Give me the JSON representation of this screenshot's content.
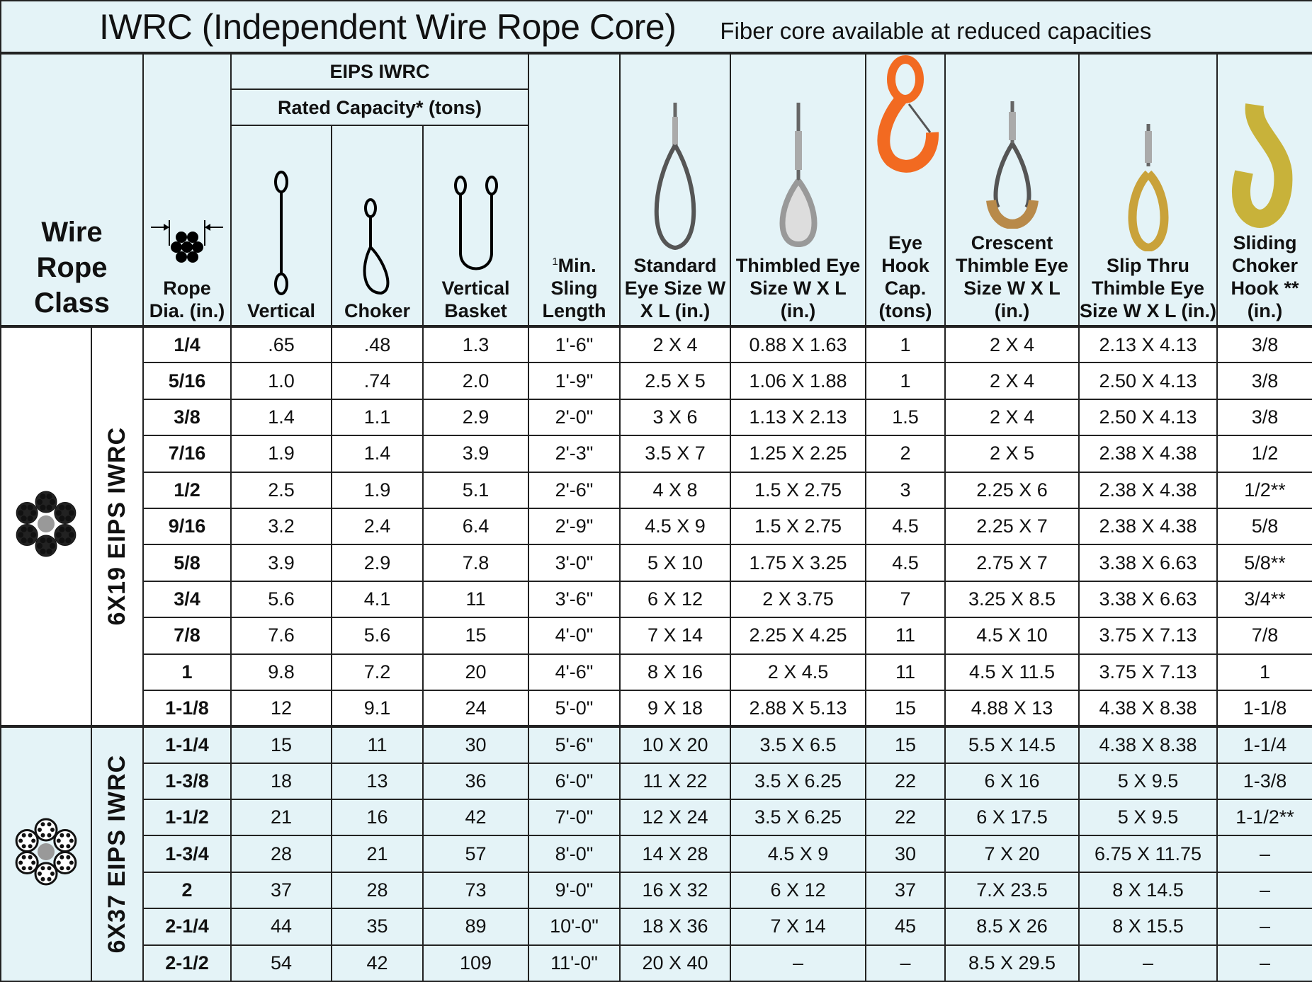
{
  "title": "IWRC (Independent Wire Rope Core)",
  "subtitle": "Fiber core available at reduced capacities",
  "headers": {
    "class": "Wire Rope Class",
    "dia": "Rope Dia. (in.)",
    "group": "EIPS IWRC",
    "rated": "Rated Capacity* (tons)",
    "vertical": "Vertical",
    "choker": "Choker",
    "basket": "Vertical Basket",
    "min_sup": "1",
    "min": "Min. Sling Length",
    "standard": "Standard Eye Size W X L (in.)",
    "thimbled": "Thimbled Eye Size W X L (in.)",
    "hook": "Eye Hook Cap. (tons)",
    "crescent": "Crescent Thimble Eye Size W X L (in.)",
    "slip": "Slip Thru Thimble Eye Size W X L (in.)",
    "sliding": "Sliding Choker Hook ** (in.)"
  },
  "sections": [
    {
      "label": "6X19 EIPS IWRC",
      "icon": "wire-rope-6x19-cross-section-icon",
      "rows": [
        [
          "1/4",
          ".65",
          ".48",
          "1.3",
          "1'-6\"",
          "2 X 4",
          "0.88 X 1.63",
          "1",
          "2 X 4",
          "2.13 X 4.13",
          "3/8"
        ],
        [
          "5/16",
          "1.0",
          ".74",
          "2.0",
          "1'-9\"",
          "2.5 X 5",
          "1.06 X 1.88",
          "1",
          "2 X 4",
          "2.50 X 4.13",
          "3/8"
        ],
        [
          "3/8",
          "1.4",
          "1.1",
          "2.9",
          "2'-0\"",
          "3 X 6",
          "1.13 X 2.13",
          "1.5",
          "2 X 4",
          "2.50 X 4.13",
          "3/8"
        ],
        [
          "7/16",
          "1.9",
          "1.4",
          "3.9",
          "2'-3\"",
          "3.5 X 7",
          "1.25 X 2.25",
          "2",
          "2 X 5",
          "2.38 X 4.38",
          "1/2"
        ],
        [
          "1/2",
          "2.5",
          "1.9",
          "5.1",
          "2'-6\"",
          "4 X 8",
          "1.5 X 2.75",
          "3",
          "2.25 X 6",
          "2.38 X 4.38",
          "1/2**"
        ],
        [
          "9/16",
          "3.2",
          "2.4",
          "6.4",
          "2'-9\"",
          "4.5 X 9",
          "1.5 X 2.75",
          "4.5",
          "2.25 X 7",
          "2.38 X 4.38",
          "5/8"
        ],
        [
          "5/8",
          "3.9",
          "2.9",
          "7.8",
          "3'-0\"",
          "5 X 10",
          "1.75 X 3.25",
          "4.5",
          "2.75 X 7",
          "3.38 X 6.63",
          "5/8**"
        ],
        [
          "3/4",
          "5.6",
          "4.1",
          "11",
          "3'-6\"",
          "6 X 12",
          "2 X 3.75",
          "7",
          "3.25 X 8.5",
          "3.38 X 6.63",
          "3/4**"
        ],
        [
          "7/8",
          "7.6",
          "5.6",
          "15",
          "4'-0\"",
          "7 X 14",
          "2.25 X 4.25",
          "11",
          "4.5 X 10",
          "3.75 X 7.13",
          "7/8"
        ],
        [
          "1",
          "9.8",
          "7.2",
          "20",
          "4'-6\"",
          "8 X 16",
          "2 X 4.5",
          "11",
          "4.5 X 11.5",
          "3.75 X 7.13",
          "1"
        ],
        [
          "1-1/8",
          "12",
          "9.1",
          "24",
          "5'-0\"",
          "9 X 18",
          "2.88 X 5.13",
          "15",
          "4.88 X 13",
          "4.38 X 8.38",
          "1-1/8"
        ]
      ]
    },
    {
      "label": "6X37 EIPS IWRC",
      "icon": "wire-rope-6x37-cross-section-icon",
      "rows": [
        [
          "1-1/4",
          "15",
          "11",
          "30",
          "5'-6\"",
          "10 X 20",
          "3.5 X 6.5",
          "15",
          "5.5 X 14.5",
          "4.38 X 8.38",
          "1-1/4"
        ],
        [
          "1-3/8",
          "18",
          "13",
          "36",
          "6'-0\"",
          "11 X 22",
          "3.5 X 6.25",
          "22",
          "6 X 16",
          "5 X 9.5",
          "1-3/8"
        ],
        [
          "1-1/2",
          "21",
          "16",
          "42",
          "7'-0\"",
          "12 X 24",
          "3.5 X 6.25",
          "22",
          "6 X 17.5",
          "5 X 9.5",
          "1-1/2**"
        ],
        [
          "1-3/4",
          "28",
          "21",
          "57",
          "8'-0\"",
          "14 X 28",
          "4.5 X 9",
          "30",
          "7 X 20",
          "6.75 X 11.75",
          "–"
        ],
        [
          "2",
          "37",
          "28",
          "73",
          "9'-0\"",
          "16 X 32",
          "6 X 12",
          "37",
          "7.X 23.5",
          "8 X 14.5",
          "–"
        ],
        [
          "2-1/4",
          "44",
          "35",
          "89",
          "10'-0\"",
          "18 X 36",
          "7 X 14",
          "45",
          "8.5 X 26",
          "8 X 15.5",
          "–"
        ],
        [
          "2-1/2",
          "54",
          "42",
          "109",
          "11'-0\"",
          "20 X 40",
          "–",
          "–",
          "8.5 X 29.5",
          "–",
          "–"
        ]
      ]
    }
  ],
  "colors": {
    "header_bg": "#e4f3f7",
    "hook_orange": "#f26a21",
    "brass": "#c9a23a",
    "gold_hook": "#c8b23a"
  }
}
